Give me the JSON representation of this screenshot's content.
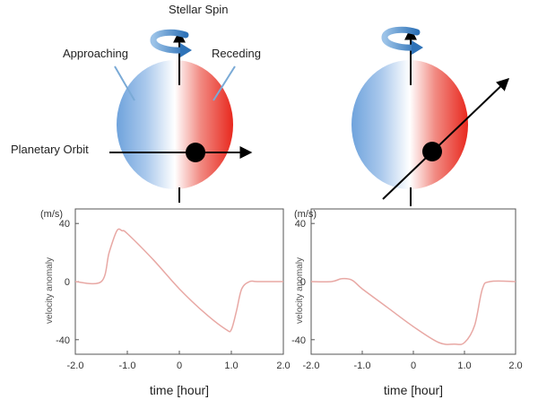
{
  "labels": {
    "stellar_spin": "Stellar Spin",
    "approaching": "Approaching",
    "receding": "Receding",
    "planetary_orbit": "Planetary Orbit"
  },
  "colors": {
    "approaching": "#6fa3dc",
    "receding": "#e8281e",
    "curve": "#e8a8a4",
    "spin_arrow": "#3a7ebf"
  },
  "chart_data": [
    {
      "type": "line",
      "xlabel": "time [hour]",
      "ylabel": "velocity anomaly",
      "unit": "(m/s)",
      "xlim": [
        -2.0,
        2.0
      ],
      "ylim": [
        -50,
        50
      ],
      "xticks": [
        "-2.0",
        "-1.0",
        "0",
        "1.0",
        "2.0"
      ],
      "yticks": [
        "40",
        "0",
        "-40"
      ],
      "x": [
        -2.0,
        -1.5,
        -1.35,
        -1.2,
        -1.1,
        -1.0,
        -0.5,
        0.0,
        0.5,
        0.9,
        1.0,
        1.1,
        1.2,
        1.35,
        1.5,
        2.0
      ],
      "y": [
        0,
        0,
        20,
        35,
        35,
        33,
        15,
        -5,
        -22,
        -33,
        -33,
        -20,
        -5,
        0,
        0,
        0
      ]
    },
    {
      "type": "line",
      "xlabel": "time [hour]",
      "ylabel": "velocity anomaly",
      "unit": "(m/s)",
      "xlim": [
        -2.0,
        2.0
      ],
      "ylim": [
        -50,
        50
      ],
      "xticks": [
        "-2.0",
        "-1.0",
        "0",
        "1.0",
        "2.0"
      ],
      "yticks": [
        "40",
        "0",
        "-40"
      ],
      "x": [
        -2.0,
        -1.6,
        -1.4,
        -1.2,
        -1.0,
        -0.5,
        0.0,
        0.5,
        0.8,
        1.0,
        1.2,
        1.35,
        1.5,
        2.0
      ],
      "y": [
        0,
        0,
        2,
        1,
        -5,
        -18,
        -31,
        -42,
        -43,
        -42,
        -30,
        -5,
        0,
        0
      ]
    }
  ]
}
